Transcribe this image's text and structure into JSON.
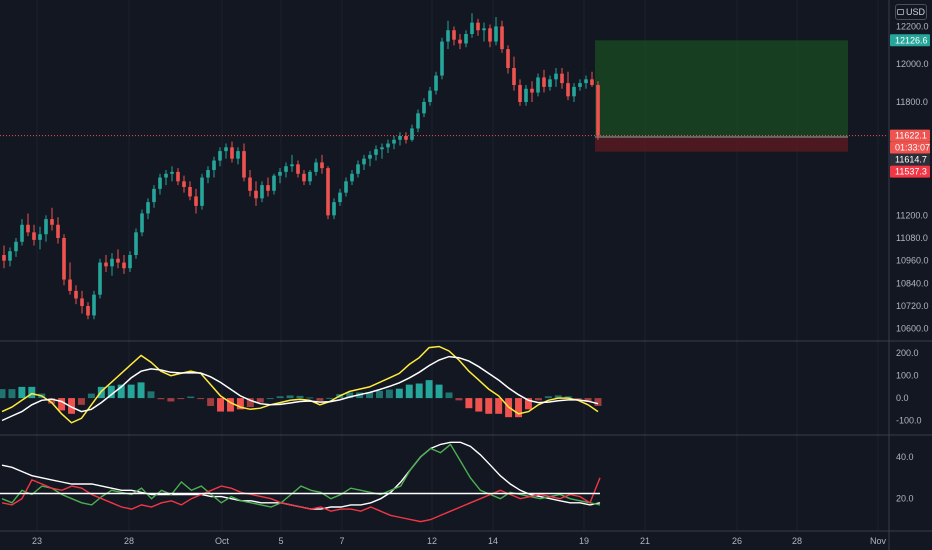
{
  "currency": "USD",
  "colors": {
    "background": "#131722",
    "grid": "#1e222d",
    "separator": "#3a3e4a",
    "up": "#26a69a",
    "down": "#ef5350",
    "current_price_line": "#ef5350",
    "position_profit": "#1b5e20",
    "position_loss": "#5d1a21",
    "macd_fast": "#ffeb3b",
    "macd_signal": "#ffffff",
    "dmi_plus": "#4caf50",
    "dmi_minus": "#f23645",
    "adx": "#ffffff"
  },
  "x_axis_labels": [
    "23",
    "28",
    "Oct",
    "5",
    "7",
    "12",
    "14",
    "19",
    "21",
    "26",
    "28",
    "Nov"
  ],
  "price_tags": [
    {
      "label": "12126.6",
      "color": "#26a69a"
    },
    {
      "label": "11622.1",
      "color": "#ef5350"
    },
    {
      "label": "01:33:07",
      "color": "#ef5350"
    },
    {
      "label": "11614.7",
      "color": "#2a2e39"
    },
    {
      "label": "11537.3",
      "color": "#f23645"
    }
  ],
  "chart_data": [
    {
      "type": "candlestick",
      "title": "",
      "y_ticks": [
        "12200.0",
        "12000.0",
        "11800.0",
        "11622.1",
        "11200.0",
        "11080.0",
        "10960.0",
        "10840.0",
        "10720.0",
        "10600.0"
      ],
      "ylim": [
        10540,
        12340
      ],
      "x_tick_labels": [
        "23",
        "28",
        "Oct",
        "5",
        "7",
        "12",
        "14",
        "19",
        "21",
        "26",
        "28",
        "Nov"
      ],
      "candles_ohlc": [
        [
          10990,
          11040,
          10920,
          10960
        ],
        [
          10960,
          11030,
          10930,
          11010
        ],
        [
          11010,
          11080,
          10980,
          11060
        ],
        [
          11060,
          11180,
          11040,
          11150
        ],
        [
          11150,
          11210,
          11090,
          11110
        ],
        [
          11110,
          11150,
          11040,
          11070
        ],
        [
          11070,
          11140,
          11020,
          11100
        ],
        [
          11100,
          11200,
          11060,
          11180
        ],
        [
          11180,
          11240,
          11120,
          11150
        ],
        [
          11150,
          11190,
          11050,
          11080
        ],
        [
          11080,
          11100,
          10830,
          10860
        ],
        [
          10860,
          10950,
          10780,
          10800
        ],
        [
          10800,
          10830,
          10730,
          10760
        ],
        [
          10760,
          10800,
          10680,
          10720
        ],
        [
          10720,
          10740,
          10650,
          10670
        ],
        [
          10670,
          10800,
          10650,
          10780
        ],
        [
          10780,
          10970,
          10760,
          10950
        ],
        [
          10950,
          10990,
          10900,
          10930
        ],
        [
          10930,
          11000,
          10880,
          10970
        ],
        [
          10970,
          11020,
          10920,
          10950
        ],
        [
          10950,
          10990,
          10890,
          10920
        ],
        [
          10920,
          11010,
          10900,
          10990
        ],
        [
          10990,
          11130,
          10970,
          11110
        ],
        [
          11110,
          11230,
          11090,
          11210
        ],
        [
          11210,
          11290,
          11180,
          11270
        ],
        [
          11270,
          11360,
          11240,
          11340
        ],
        [
          11340,
          11420,
          11310,
          11400
        ],
        [
          11400,
          11440,
          11360,
          11420
        ],
        [
          11420,
          11460,
          11380,
          11430
        ],
        [
          11430,
          11450,
          11360,
          11380
        ],
        [
          11380,
          11410,
          11320,
          11350
        ],
        [
          11350,
          11380,
          11280,
          11300
        ],
        [
          11300,
          11340,
          11210,
          11250
        ],
        [
          11250,
          11420,
          11230,
          11400
        ],
        [
          11400,
          11460,
          11370,
          11440
        ],
        [
          11440,
          11510,
          11400,
          11490
        ],
        [
          11490,
          11560,
          11460,
          11540
        ],
        [
          11540,
          11580,
          11500,
          11560
        ],
        [
          11560,
          11590,
          11480,
          11500
        ],
        [
          11500,
          11560,
          11470,
          11540
        ],
        [
          11540,
          11580,
          11380,
          11400
        ],
        [
          11400,
          11440,
          11300,
          11330
        ],
        [
          11330,
          11380,
          11250,
          11290
        ],
        [
          11290,
          11380,
          11270,
          11360
        ],
        [
          11360,
          11400,
          11300,
          11330
        ],
        [
          11330,
          11420,
          11310,
          11410
        ],
        [
          11410,
          11450,
          11370,
          11430
        ],
        [
          11430,
          11480,
          11400,
          11460
        ],
        [
          11460,
          11520,
          11430,
          11470
        ],
        [
          11470,
          11490,
          11400,
          11420
        ],
        [
          11420,
          11440,
          11360,
          11380
        ],
        [
          11380,
          11440,
          11360,
          11430
        ],
        [
          11430,
          11500,
          11410,
          11480
        ],
        [
          11480,
          11520,
          11420,
          11450
        ],
        [
          11450,
          11460,
          11180,
          11200
        ],
        [
          11200,
          11290,
          11180,
          11270
        ],
        [
          11270,
          11340,
          11250,
          11320
        ],
        [
          11320,
          11400,
          11300,
          11380
        ],
        [
          11380,
          11440,
          11360,
          11420
        ],
        [
          11420,
          11490,
          11400,
          11470
        ],
        [
          11470,
          11520,
          11440,
          11500
        ],
        [
          11500,
          11540,
          11460,
          11520
        ],
        [
          11520,
          11570,
          11490,
          11550
        ],
        [
          11550,
          11580,
          11500,
          11560
        ],
        [
          11560,
          11600,
          11530,
          11580
        ],
        [
          11580,
          11620,
          11550,
          11600
        ],
        [
          11600,
          11640,
          11570,
          11620
        ],
        [
          11620,
          11640,
          11580,
          11600
        ],
        [
          11600,
          11680,
          11590,
          11660
        ],
        [
          11660,
          11760,
          11640,
          11740
        ],
        [
          11740,
          11820,
          11720,
          11800
        ],
        [
          11800,
          11880,
          11780,
          11860
        ],
        [
          11860,
          11960,
          11840,
          11940
        ],
        [
          11940,
          12140,
          11920,
          12120
        ],
        [
          12120,
          12230,
          12080,
          12180
        ],
        [
          12180,
          12200,
          12100,
          12130
        ],
        [
          12130,
          12160,
          12080,
          12110
        ],
        [
          12110,
          12180,
          12090,
          12160
        ],
        [
          12160,
          12270,
          12140,
          12220
        ],
        [
          12220,
          12240,
          12150,
          12180
        ],
        [
          12180,
          12220,
          12120,
          12190
        ],
        [
          12190,
          12210,
          12090,
          12120
        ],
        [
          12120,
          12250,
          12100,
          12200
        ],
        [
          12200,
          12230,
          12060,
          12080
        ],
        [
          12080,
          12100,
          11950,
          11980
        ],
        [
          11980,
          12040,
          11860,
          11890
        ],
        [
          11890,
          11920,
          11780,
          11800
        ],
        [
          11800,
          11890,
          11780,
          11870
        ],
        [
          11870,
          11910,
          11800,
          11850
        ],
        [
          11850,
          11950,
          11830,
          11930
        ],
        [
          11930,
          11970,
          11850,
          11880
        ],
        [
          11880,
          11940,
          11860,
          11920
        ],
        [
          11920,
          11980,
          11880,
          11950
        ],
        [
          11950,
          11980,
          11870,
          11900
        ],
        [
          11900,
          11960,
          11810,
          11830
        ],
        [
          11830,
          11900,
          11800,
          11880
        ],
        [
          11880,
          11920,
          11860,
          11900
        ],
        [
          11900,
          11940,
          11870,
          11920
        ],
        [
          11920,
          11960,
          11880,
          11890
        ],
        [
          11890,
          11910,
          11600,
          11622
        ]
      ],
      "position": {
        "take_profit": 12126.6,
        "entry": 11614.7,
        "stop_loss": 11537.3
      }
    },
    {
      "type": "line",
      "title": "",
      "y_ticks": [
        "200.0",
        "100.0",
        "0.0",
        "-100.0"
      ],
      "ylim": [
        -160,
        250
      ],
      "series": [
        {
          "role": "macd",
          "color": "#ffeb3b",
          "values": [
            -60,
            -40,
            -10,
            20,
            10,
            -20,
            -70,
            -110,
            -90,
            -30,
            30,
            70,
            110,
            150,
            190,
            160,
            120,
            100,
            110,
            120,
            110,
            60,
            10,
            -20,
            -40,
            -50,
            -45,
            -30,
            -20,
            -10,
            -5,
            -10,
            -30,
            -15,
            10,
            30,
            40,
            50,
            70,
            90,
            110,
            150,
            180,
            225,
            230,
            210,
            170,
            120,
            80,
            40,
            10,
            -40,
            -70,
            -60,
            -30,
            -10,
            0,
            0,
            -10,
            -30,
            -60
          ]
        },
        {
          "role": "signal",
          "color": "#ffffff",
          "values": [
            -100,
            -80,
            -60,
            -30,
            -10,
            -5,
            -15,
            -40,
            -60,
            -50,
            -20,
            15,
            50,
            90,
            120,
            130,
            125,
            115,
            112,
            113,
            112,
            95,
            70,
            40,
            10,
            -10,
            -25,
            -30,
            -28,
            -22,
            -15,
            -13,
            -18,
            -16,
            -8,
            5,
            15,
            25,
            38,
            52,
            68,
            90,
            115,
            145,
            170,
            185,
            180,
            165,
            140,
            110,
            80,
            45,
            15,
            -10,
            -20,
            -18,
            -12,
            -8,
            -8,
            -14,
            -25
          ]
        },
        {
          "role": "histogram",
          "up_color": "#26a69a",
          "down_color": "#ef5350",
          "values": [
            40,
            40,
            50,
            50,
            20,
            -25,
            -55,
            -70,
            -30,
            20,
            50,
            55,
            60,
            60,
            70,
            30,
            -5,
            -15,
            -2,
            7,
            -2,
            -35,
            -60,
            -60,
            -50,
            -40,
            -20,
            0,
            8,
            12,
            10,
            3,
            -12,
            1,
            18,
            25,
            25,
            25,
            32,
            38,
            42,
            60,
            65,
            80,
            60,
            25,
            -10,
            -45,
            -60,
            -70,
            -70,
            -85,
            -85,
            -50,
            -10,
            8,
            12,
            8,
            -2,
            -16,
            -35
          ]
        }
      ]
    },
    {
      "type": "line",
      "title": "",
      "y_ticks": [
        "40.0",
        "20.0"
      ],
      "ylim": [
        5,
        50
      ],
      "series": [
        {
          "role": "adx",
          "color": "#ffffff",
          "values": [
            36,
            35,
            33,
            31,
            30,
            29,
            28,
            27,
            27,
            27,
            26,
            25,
            24,
            24,
            23,
            22,
            22,
            22,
            22,
            22,
            22,
            21,
            21,
            20,
            19,
            19,
            18,
            18,
            18,
            17,
            16,
            15,
            15,
            16,
            16,
            17,
            17,
            18,
            20,
            23,
            28,
            34,
            40,
            44,
            46,
            47,
            47,
            45,
            41,
            36,
            31,
            27,
            24,
            22,
            21,
            20,
            19,
            18,
            18,
            17,
            18
          ]
        },
        {
          "role": "plus_di",
          "color": "#4caf50",
          "values": [
            20,
            18,
            24,
            22,
            26,
            25,
            22,
            20,
            18,
            17,
            21,
            24,
            23,
            22,
            25,
            20,
            24,
            22,
            28,
            24,
            26,
            22,
            18,
            21,
            19,
            18,
            17,
            16,
            18,
            22,
            26,
            24,
            23,
            20,
            22,
            25,
            24,
            23,
            22,
            24,
            26,
            34,
            40,
            44,
            42,
            46,
            38,
            30,
            24,
            22,
            20,
            23,
            22,
            21,
            20,
            21,
            22,
            20,
            19,
            18,
            17
          ]
        },
        {
          "role": "minus_di",
          "color": "#f23645",
          "values": [
            18,
            17,
            20,
            29,
            27,
            25,
            24,
            26,
            25,
            22,
            20,
            18,
            16,
            15,
            17,
            16,
            18,
            19,
            17,
            20,
            22,
            24,
            26,
            25,
            23,
            22,
            21,
            20,
            18,
            17,
            16,
            15,
            16,
            14,
            15,
            15,
            14,
            16,
            14,
            12,
            11,
            10,
            9,
            10,
            12,
            14,
            16,
            18,
            20,
            22,
            24,
            22,
            20,
            21,
            22,
            21,
            20,
            22,
            21,
            18,
            30
          ]
        },
        {
          "role": "reference_level",
          "color": "#ffffff",
          "values": [
            22.5
          ]
        }
      ]
    }
  ]
}
